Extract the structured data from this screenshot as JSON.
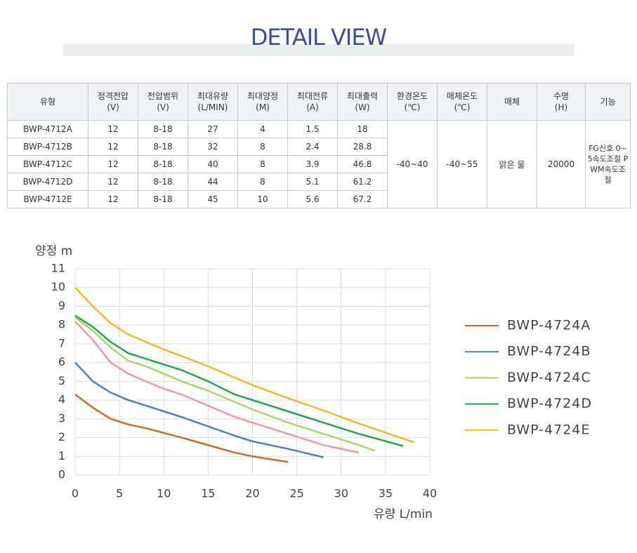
{
  "header": {
    "title": "DETAIL VIEW"
  },
  "table": {
    "headers": [
      "유형",
      "정격전압\n(V)",
      "전압범위\n(V)",
      "최대유량\n(L/MIN)",
      "최대양정\n(M)",
      "최대전류\n(A)",
      "최대출력\n(W)",
      "환경온도\n(℃)",
      "매체온도\n(℃)",
      "매체",
      "수명\n(H)",
      "기능"
    ],
    "rows": [
      [
        "BWP-4712A",
        "12",
        "8-18",
        "27",
        "4",
        "1.5",
        "18"
      ],
      [
        "BWP-4712B",
        "12",
        "8-18",
        "32",
        "8",
        "2.4",
        "28.8"
      ],
      [
        "BWP-4712C",
        "12",
        "8-18",
        "40",
        "8",
        "3.9",
        "46.8"
      ],
      [
        "BWP-4712D",
        "12",
        "8-18",
        "44",
        "8",
        "5.1",
        "61.2"
      ],
      [
        "BWP-4712E",
        "12",
        "8-18",
        "45",
        "10",
        "5.6",
        "67.2"
      ]
    ],
    "merged": [
      "-40~40",
      "-40~55",
      "맑은 물",
      "20000",
      "FG신호 0~5속도조절 PWM속도조절"
    ]
  },
  "chart_data": {
    "type": "line",
    "ylabel": "양정 m",
    "xlabel": "유량 L/min",
    "xlim": [
      0,
      40
    ],
    "xticks": [
      0,
      5,
      10,
      15,
      20,
      25,
      30,
      35,
      40
    ],
    "ylim": [
      0,
      11
    ],
    "yticks": [
      0,
      1,
      2,
      3,
      4,
      5,
      6,
      7,
      8,
      9,
      10,
      11
    ],
    "grid": true,
    "legend": "right",
    "series": [
      {
        "name": "BWP-4724A",
        "color": "#d4682a",
        "x": [
          0,
          2,
          4,
          6,
          8,
          10,
          12,
          15,
          18,
          20,
          22,
          24
        ],
        "values": [
          4.3,
          3.6,
          3.0,
          2.7,
          2.5,
          2.25,
          2.0,
          1.6,
          1.2,
          1.0,
          0.85,
          0.7
        ]
      },
      {
        "name": "BWP-4724B",
        "color": "#4a7fd4",
        "x": [
          0,
          2,
          4,
          6,
          8,
          10,
          12,
          15,
          18,
          20,
          24,
          28
        ],
        "values": [
          6.0,
          5.0,
          4.4,
          4.0,
          3.7,
          3.4,
          3.1,
          2.6,
          2.1,
          1.8,
          1.4,
          0.95
        ]
      },
      {
        "color": "#f09aa6",
        "x": [
          0,
          2,
          4,
          6,
          8,
          10,
          12,
          15,
          18,
          20,
          24,
          28,
          32
        ],
        "values": [
          8.2,
          7.2,
          6.0,
          5.4,
          5.0,
          4.6,
          4.3,
          3.7,
          3.1,
          2.8,
          2.2,
          1.6,
          1.2
        ]
      },
      {
        "name": "BWP-4724C",
        "color": "#a8d86a",
        "x": [
          0,
          2,
          4,
          6,
          8,
          10,
          12,
          15,
          18,
          20,
          24,
          28,
          32,
          33.8
        ],
        "values": [
          8.4,
          7.7,
          6.8,
          6.1,
          5.8,
          5.4,
          5.0,
          4.5,
          3.9,
          3.5,
          2.8,
          2.2,
          1.6,
          1.3
        ]
      },
      {
        "name": "BWP-4724D",
        "color": "#1aab4a",
        "x": [
          0,
          2,
          4,
          6,
          8,
          10,
          12,
          15,
          18,
          20,
          24,
          28,
          32,
          37
        ],
        "values": [
          8.5,
          7.9,
          7.1,
          6.5,
          6.2,
          5.9,
          5.6,
          5.0,
          4.3,
          4.0,
          3.4,
          2.8,
          2.2,
          1.55
        ]
      },
      {
        "name": "BWP-4724E",
        "color": "#f5bb1a",
        "x": [
          0,
          2,
          4,
          6,
          8,
          10,
          12,
          15,
          18,
          20,
          24,
          28,
          32,
          38.2
        ],
        "values": [
          10,
          9.0,
          8.1,
          7.5,
          7.1,
          6.7,
          6.35,
          5.8,
          5.2,
          4.8,
          4.1,
          3.45,
          2.75,
          1.75
        ]
      }
    ]
  }
}
